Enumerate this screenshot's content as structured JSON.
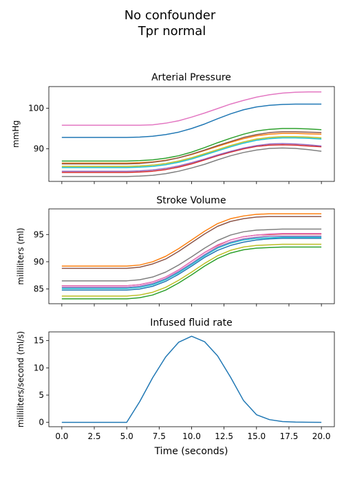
{
  "figure": {
    "title_line1": "No confounder",
    "title_line2": "Tpr normal"
  },
  "colors": [
    "#1f77b4",
    "#ff7f0e",
    "#2ca02c",
    "#d62728",
    "#9467bd",
    "#8c564b",
    "#e377c2",
    "#7f7f7f",
    "#bcbd22",
    "#17becf"
  ],
  "chart_data": [
    {
      "type": "line",
      "title": "Arterial Pressure",
      "ylabel": "mmHg",
      "xlabel": "",
      "xlim": [
        -1,
        21
      ],
      "ylim": [
        82.0,
        105.3
      ],
      "yticks": [
        90,
        100
      ],
      "xticks": [
        0,
        2.5,
        5,
        7.5,
        10,
        12.5,
        15,
        17.5,
        20
      ],
      "show_xticklabels": false,
      "x": [
        0,
        5,
        6,
        7,
        8,
        9,
        10,
        11,
        12,
        13,
        14,
        15,
        16,
        17,
        18,
        19,
        20
      ],
      "series": [
        {
          "values": [
            92.8,
            92.8,
            92.9,
            93.1,
            93.5,
            94.1,
            95.0,
            96.1,
            97.4,
            98.6,
            99.6,
            100.3,
            100.7,
            100.9,
            101.0,
            101.0,
            101.0
          ]
        },
        {
          "values": [
            86.5,
            86.5,
            86.6,
            86.8,
            87.2,
            87.8,
            88.6,
            89.6,
            90.6,
            91.6,
            92.5,
            93.2,
            93.6,
            93.8,
            93.8,
            93.7,
            93.6
          ]
        },
        {
          "values": [
            87.0,
            87.0,
            87.1,
            87.3,
            87.7,
            88.3,
            89.2,
            90.3,
            91.5,
            92.6,
            93.6,
            94.4,
            94.8,
            95.0,
            95.0,
            94.9,
            94.7
          ]
        },
        {
          "values": [
            84.2,
            84.2,
            84.3,
            84.5,
            84.9,
            85.5,
            86.3,
            87.3,
            88.3,
            89.2,
            90.0,
            90.6,
            90.9,
            91.0,
            90.9,
            90.7,
            90.5
          ]
        },
        {
          "values": [
            84.5,
            84.5,
            84.6,
            84.8,
            85.2,
            85.8,
            86.6,
            87.5,
            88.5,
            89.4,
            90.2,
            90.8,
            91.2,
            91.3,
            91.2,
            91.0,
            90.7
          ]
        },
        {
          "values": [
            86.3,
            86.3,
            86.4,
            86.7,
            87.1,
            87.8,
            88.7,
            89.7,
            90.8,
            91.8,
            92.8,
            93.5,
            94.0,
            94.2,
            94.2,
            94.1,
            94.0
          ]
        },
        {
          "values": [
            95.8,
            95.8,
            95.8,
            95.9,
            96.3,
            96.9,
            97.8,
            98.8,
            99.9,
            101.0,
            101.9,
            102.7,
            103.3,
            103.7,
            103.9,
            104.0,
            104.0
          ]
        },
        {
          "values": [
            83.2,
            83.2,
            83.3,
            83.5,
            83.9,
            84.5,
            85.3,
            86.2,
            87.3,
            88.3,
            89.1,
            89.7,
            90.1,
            90.2,
            90.1,
            89.8,
            89.4
          ]
        },
        {
          "values": [
            85.7,
            85.7,
            85.8,
            86.0,
            86.4,
            87.0,
            87.8,
            88.8,
            89.8,
            90.8,
            91.7,
            92.4,
            92.8,
            93.0,
            93.0,
            92.9,
            92.7
          ]
        },
        {
          "values": [
            85.4,
            85.4,
            85.5,
            85.7,
            86.1,
            86.7,
            87.5,
            88.5,
            89.5,
            90.5,
            91.4,
            92.1,
            92.5,
            92.7,
            92.7,
            92.6,
            92.4
          ]
        }
      ]
    },
    {
      "type": "line",
      "title": "Stroke Volume",
      "ylabel": "milliliters (ml)",
      "xlabel": "",
      "xlim": [
        -1,
        21
      ],
      "ylim": [
        82.3,
        99.7
      ],
      "yticks": [
        85,
        90,
        95
      ],
      "xticks": [
        0,
        2.5,
        5,
        7.5,
        10,
        12.5,
        15,
        17.5,
        20
      ],
      "show_xticklabels": false,
      "x": [
        0,
        5,
        6,
        7,
        8,
        9,
        10,
        11,
        12,
        13,
        14,
        15,
        16,
        17,
        18,
        19,
        20
      ],
      "series": [
        {
          "values": [
            84.8,
            84.8,
            85.0,
            85.5,
            86.4,
            87.7,
            89.2,
            90.8,
            92.1,
            93.0,
            93.6,
            94.0,
            94.2,
            94.3,
            94.3,
            94.3,
            94.3
          ]
        },
        {
          "values": [
            89.2,
            89.2,
            89.4,
            90.0,
            91.0,
            92.4,
            94.0,
            95.6,
            97.0,
            97.9,
            98.4,
            98.7,
            98.8,
            98.8,
            98.8,
            98.8,
            98.8
          ]
        },
        {
          "values": [
            83.2,
            83.2,
            83.4,
            83.9,
            84.8,
            86.1,
            87.6,
            89.2,
            90.6,
            91.6,
            92.2,
            92.5,
            92.6,
            92.7,
            92.7,
            92.7,
            92.7
          ]
        },
        {
          "values": [
            85.6,
            85.6,
            85.8,
            86.3,
            87.2,
            88.5,
            90.1,
            91.7,
            93.0,
            94.0,
            94.6,
            94.9,
            95.0,
            95.1,
            95.1,
            95.1,
            95.1
          ]
        },
        {
          "values": [
            85.3,
            85.3,
            85.5,
            86.0,
            86.9,
            88.2,
            89.7,
            91.3,
            92.7,
            93.6,
            94.2,
            94.5,
            94.7,
            94.7,
            94.7,
            94.7,
            94.7
          ]
        },
        {
          "values": [
            88.8,
            88.8,
            89.0,
            89.6,
            90.5,
            91.9,
            93.5,
            95.1,
            96.5,
            97.4,
            97.9,
            98.2,
            98.3,
            98.3,
            98.3,
            98.3,
            98.3
          ]
        },
        {
          "values": [
            85.6,
            85.6,
            85.8,
            86.3,
            87.2,
            88.5,
            90.1,
            91.7,
            93.1,
            94.0,
            94.6,
            94.9,
            95.1,
            95.2,
            95.2,
            95.2,
            95.2
          ]
        },
        {
          "values": [
            86.5,
            86.5,
            86.7,
            87.2,
            88.1,
            89.4,
            90.9,
            92.5,
            93.9,
            94.9,
            95.5,
            95.8,
            95.9,
            96.0,
            96.0,
            96.0,
            96.0
          ]
        },
        {
          "values": [
            83.7,
            83.7,
            83.9,
            84.4,
            85.3,
            86.6,
            88.1,
            89.7,
            91.1,
            92.1,
            92.7,
            93.0,
            93.1,
            93.2,
            93.2,
            93.2,
            93.2
          ]
        },
        {
          "values": [
            85.1,
            85.1,
            85.3,
            85.8,
            86.7,
            88.0,
            89.5,
            91.1,
            92.5,
            93.4,
            94.0,
            94.3,
            94.4,
            94.5,
            94.5,
            94.5,
            94.5
          ]
        }
      ]
    },
    {
      "type": "line",
      "title": "Infused fluid rate",
      "ylabel": "milliliters/second (ml/s)",
      "xlabel": "Time (seconds)",
      "xlim": [
        -1,
        21
      ],
      "ylim": [
        -0.8,
        16.6
      ],
      "yticks": [
        0,
        5,
        10,
        15
      ],
      "xticks": [
        0,
        2.5,
        5,
        7.5,
        10,
        12.5,
        15,
        17.5,
        20
      ],
      "xticklabels": [
        "0.0",
        "2.5",
        "5.0",
        "7.5",
        "10.0",
        "12.5",
        "15.0",
        "17.5",
        "20.0"
      ],
      "show_xticklabels": true,
      "x": [
        0,
        1,
        2,
        3,
        4,
        5,
        6,
        7,
        8,
        9,
        10,
        11,
        12,
        13,
        14,
        15,
        16,
        17,
        18,
        19,
        20
      ],
      "series": [
        {
          "values": [
            0,
            0,
            0,
            0,
            0,
            0,
            3.8,
            8.2,
            12.0,
            14.7,
            15.8,
            14.8,
            12.2,
            8.3,
            4.0,
            1.4,
            0.5,
            0.15,
            0.05,
            0.02,
            0
          ]
        }
      ]
    }
  ]
}
